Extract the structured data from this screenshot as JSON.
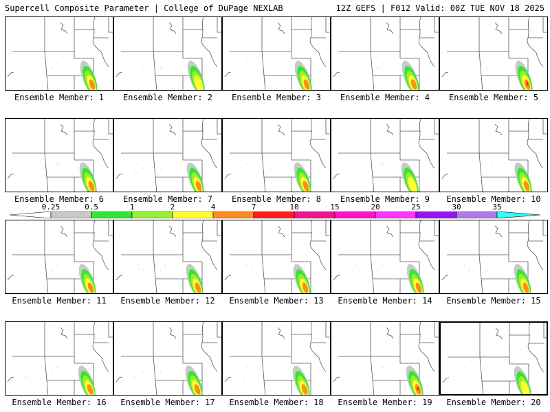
{
  "header": {
    "title_left": "Supercell Composite Parameter | College of DuPage NEXLAB",
    "title_right": "12Z GEFS | F012 Valid: 00Z TUE NOV 18 2025"
  },
  "member_label_prefix": "Ensemble Member: ",
  "members": [
    {
      "number": 1,
      "intensity": 4,
      "selected": false
    },
    {
      "number": 2,
      "intensity": 3,
      "selected": false
    },
    {
      "number": 3,
      "intensity": 4,
      "selected": false
    },
    {
      "number": 4,
      "intensity": 4,
      "selected": false
    },
    {
      "number": 5,
      "intensity": 5,
      "selected": false
    },
    {
      "number": 6,
      "intensity": 4,
      "selected": false
    },
    {
      "number": 7,
      "intensity": 4,
      "selected": false
    },
    {
      "number": 8,
      "intensity": 4,
      "selected": false
    },
    {
      "number": 9,
      "intensity": 3,
      "selected": false
    },
    {
      "number": 10,
      "intensity": 4,
      "selected": false
    },
    {
      "number": 11,
      "intensity": 4,
      "selected": false
    },
    {
      "number": 12,
      "intensity": 4,
      "selected": false
    },
    {
      "number": 13,
      "intensity": 4,
      "selected": false
    },
    {
      "number": 14,
      "intensity": 4,
      "selected": false
    },
    {
      "number": 15,
      "intensity": 4,
      "selected": false
    },
    {
      "number": 16,
      "intensity": 4,
      "selected": false
    },
    {
      "number": 17,
      "intensity": 4,
      "selected": false
    },
    {
      "number": 18,
      "intensity": 4,
      "selected": false
    },
    {
      "number": 19,
      "intensity": 5,
      "selected": false
    },
    {
      "number": 20,
      "intensity": 3,
      "selected": true
    }
  ],
  "colorbar": {
    "labels": [
      "0.25",
      "0.5",
      "1",
      "2",
      "4",
      "7",
      "10",
      "15",
      "20",
      "25",
      "30",
      "35"
    ],
    "colors": [
      "#ffffff",
      "#c8c8c8",
      "#32e632",
      "#96f032",
      "#ffff32",
      "#ff8c1e",
      "#ff1e1e",
      "#f0148c",
      "#ff14c8",
      "#ff32ff",
      "#9614f0",
      "#b478e6",
      "#32ffff"
    ]
  }
}
